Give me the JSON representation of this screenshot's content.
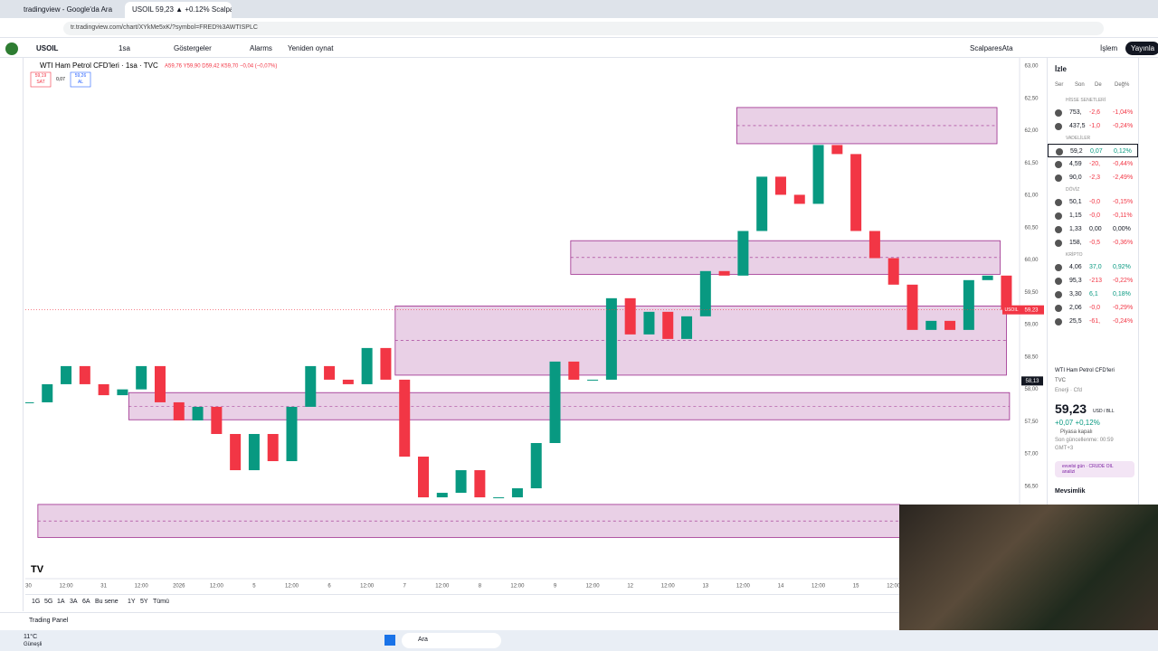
{
  "browser": {
    "tabs": [
      "tradingview - Google'da Ara",
      "USOIL 59,23 ▲ +0.12% Scalpa"
    ],
    "url": "tr.tradingview.com/chart/XYkMe5xK/?symbol=FRED%3AWTISPLC"
  },
  "toolbar": {
    "symbol": "USOIL",
    "interval": "1sa",
    "items": [
      "Göstergeler",
      "Alarms",
      "Yeniden oynat"
    ],
    "layout": "ScalparesAta",
    "trade": "İşlem",
    "publish": "Yayınla"
  },
  "legend": {
    "title": "WTI Ham Petrol CFD'leri · 1sa · TVC",
    "ohlc": "A59,76 Y59,90 D59,42 K59,70 −0,04 (−0,07%)",
    "sell": "59,19",
    "sell_label": "SAT",
    "spread": "0,07",
    "buy": "59,26",
    "buy_label": "AL"
  },
  "chart_data": {
    "type": "candlestick",
    "x": [
      0,
      6,
      12,
      18,
      24,
      30,
      36,
      42,
      48,
      54,
      60,
      66,
      72,
      78,
      84,
      90,
      96,
      102,
      108,
      114,
      120,
      126,
      132,
      138,
      144,
      150,
      156,
      162,
      168,
      174,
      180,
      186,
      192,
      198,
      204,
      210,
      216,
      222,
      228,
      234,
      240,
      246,
      252,
      258,
      264,
      270,
      276,
      282,
      288,
      294,
      300,
      306,
      312
    ],
    "values": [
      57.8,
      58.08,
      58.36,
      58.08,
      57.91,
      58.0,
      58.36,
      57.8,
      57.52,
      57.73,
      57.31,
      56.75,
      57.31,
      56.89,
      57.73,
      58.36,
      58.15,
      58.08,
      58.64,
      58.15,
      56.96,
      56.33,
      56.4,
      56.75,
      56.33,
      56.33,
      56.47,
      57.17,
      58.43,
      58.15,
      58.15,
      59.41,
      58.85,
      59.2,
      58.78,
      59.13,
      59.83,
      59.76,
      60.45,
      61.29,
      61.01,
      60.87,
      61.78,
      61.64,
      60.45,
      60.03,
      59.62,
      58.92,
      59.06,
      58.92,
      59.69,
      59.76,
      59.23
    ],
    "up_color": "#089981",
    "down_color": "#f23645",
    "zones": [
      {
        "from": 226,
        "to": 309,
        "high": 62.36,
        "low": 61.8
      },
      {
        "from": 173,
        "to": 310,
        "high": 60.3,
        "low": 59.78
      },
      {
        "from": 117,
        "to": 312,
        "high": 59.29,
        "low": 58.22
      },
      {
        "from": 32,
        "to": 313,
        "high": 57.95,
        "low": 57.53
      },
      {
        "from": 3,
        "to": 278,
        "high": 56.22,
        "low": 55.71
      }
    ],
    "zone_color": "#9c2a8c",
    "xlim": [
      -1,
      324
    ],
    "ylim": [
      55.1,
      63.1
    ],
    "grid": false,
    "yticks": [
      {
        "value": 56.5,
        "label": "56,50"
      },
      {
        "value": 57,
        "label": "57,00"
      },
      {
        "value": 57.5,
        "label": "57,50"
      },
      {
        "value": 58,
        "label": "58,00"
      },
      {
        "value": 58.5,
        "label": "58,50"
      },
      {
        "value": 59,
        "label": "59,00"
      },
      {
        "value": 59.5,
        "label": "59,50"
      },
      {
        "value": 60,
        "label": "60,00"
      },
      {
        "value": 60.5,
        "label": "60,50"
      },
      {
        "value": 61,
        "label": "61,00"
      },
      {
        "value": 61.5,
        "label": "61,50"
      },
      {
        "value": 62,
        "label": "62,00"
      },
      {
        "value": 62.5,
        "label": "62,50"
      },
      {
        "value": 63,
        "label": "63,00"
      }
    ],
    "xticks": [
      {
        "value": 0,
        "label": "30"
      },
      {
        "value": 12,
        "label": "12:00"
      },
      {
        "value": 24,
        "label": "31"
      },
      {
        "value": 36,
        "label": "12:00"
      },
      {
        "value": 48,
        "label": "2026"
      },
      {
        "value": 60,
        "label": "12:00"
      },
      {
        "value": 72,
        "label": "5"
      },
      {
        "value": 84,
        "label": "12:00"
      },
      {
        "value": 96,
        "label": "6"
      },
      {
        "value": 108,
        "label": "12:00"
      },
      {
        "value": 120,
        "label": "7"
      },
      {
        "value": 132,
        "label": "12:00"
      },
      {
        "value": 144,
        "label": "8"
      },
      {
        "value": 156,
        "label": "12:00"
      },
      {
        "value": 168,
        "label": "9"
      },
      {
        "value": 180,
        "label": "12:00"
      },
      {
        "value": 192,
        "label": "12"
      },
      {
        "value": 204,
        "label": "12:00"
      },
      {
        "value": 216,
        "label": "13"
      },
      {
        "value": 228,
        "label": "12:00"
      },
      {
        "value": 240,
        "label": "14"
      },
      {
        "value": 252,
        "label": "12:00"
      },
      {
        "value": 264,
        "label": "15"
      },
      {
        "value": 276,
        "label": "12:00"
      }
    ],
    "last_price": {
      "symbol": "USOIL",
      "value": 59.23,
      "label": "59,23"
    },
    "crosshair": {
      "value": 58.13,
      "label": "58,13"
    }
  },
  "ranges": [
    "1G",
    "5G",
    "1A",
    "3A",
    "6A",
    "Bu sene",
    "1Y",
    "5Y",
    "Tümü"
  ],
  "trading_panel": "Trading Panel",
  "watchlist": {
    "title": "İzle",
    "columns": [
      "Ser",
      "Son",
      "De",
      "Değ%"
    ],
    "sections": [
      {
        "name": "HİSSE SENETLERİ",
        "rows": [
          [
            "753,",
            "-2,6",
            "-1,04%",
            "#f23645"
          ],
          [
            "437,5",
            "-1,0",
            "-0,24%",
            "#f23645"
          ]
        ]
      },
      {
        "name": "VADELİLER",
        "rows": [
          [
            "59,2",
            "0,07",
            "0,12%",
            "#089981"
          ],
          [
            "4,59",
            "-20,",
            "-0,44%",
            "#f23645"
          ],
          [
            "90,0",
            "-2,3",
            "-2,49%",
            "#f23645"
          ]
        ]
      },
      {
        "name": "DÖVİZ",
        "rows": [
          [
            "50,1",
            "-0,0",
            "-0,15%",
            "#f23645"
          ],
          [
            "1,15",
            "-0,0",
            "-0,11%",
            "#f23645"
          ],
          [
            "1,33",
            "0,00",
            "0,00%",
            "#131722"
          ],
          [
            "158,",
            "-0,5",
            "-0,36%",
            "#f23645"
          ]
        ]
      },
      {
        "name": "KRİPTO",
        "rows": [
          [
            "4,06",
            "37,0",
            "0,92%",
            "#089981"
          ],
          [
            "95,3",
            "-213",
            "-0,22%",
            "#f23645"
          ],
          [
            "3,30",
            "6,1",
            "0,18%",
            "#089981"
          ],
          [
            "2,06",
            "-0,0",
            "-0,29%",
            "#f23645"
          ],
          [
            "25,5",
            "-61,",
            "-0,24%",
            "#f23645"
          ]
        ]
      }
    ]
  },
  "details": {
    "name": "WTI Ham Petrol CFD'leri",
    "exchange": "TVC",
    "category": "Enerji · Cfd",
    "price": "59,23",
    "unit": "USD / BLL",
    "change": "+0,07 +0,12%",
    "status": "Piyasa kapalı",
    "updated": "Son güncellenme: 00:59",
    "tz": "GMT+3",
    "idea": "evvelsi gün · CRUDE OIL analizi",
    "seasonal": "Mevsimlik"
  },
  "taskbar": {
    "weather": "11°C",
    "weather_text": "Güneşli",
    "search": "Ara"
  }
}
